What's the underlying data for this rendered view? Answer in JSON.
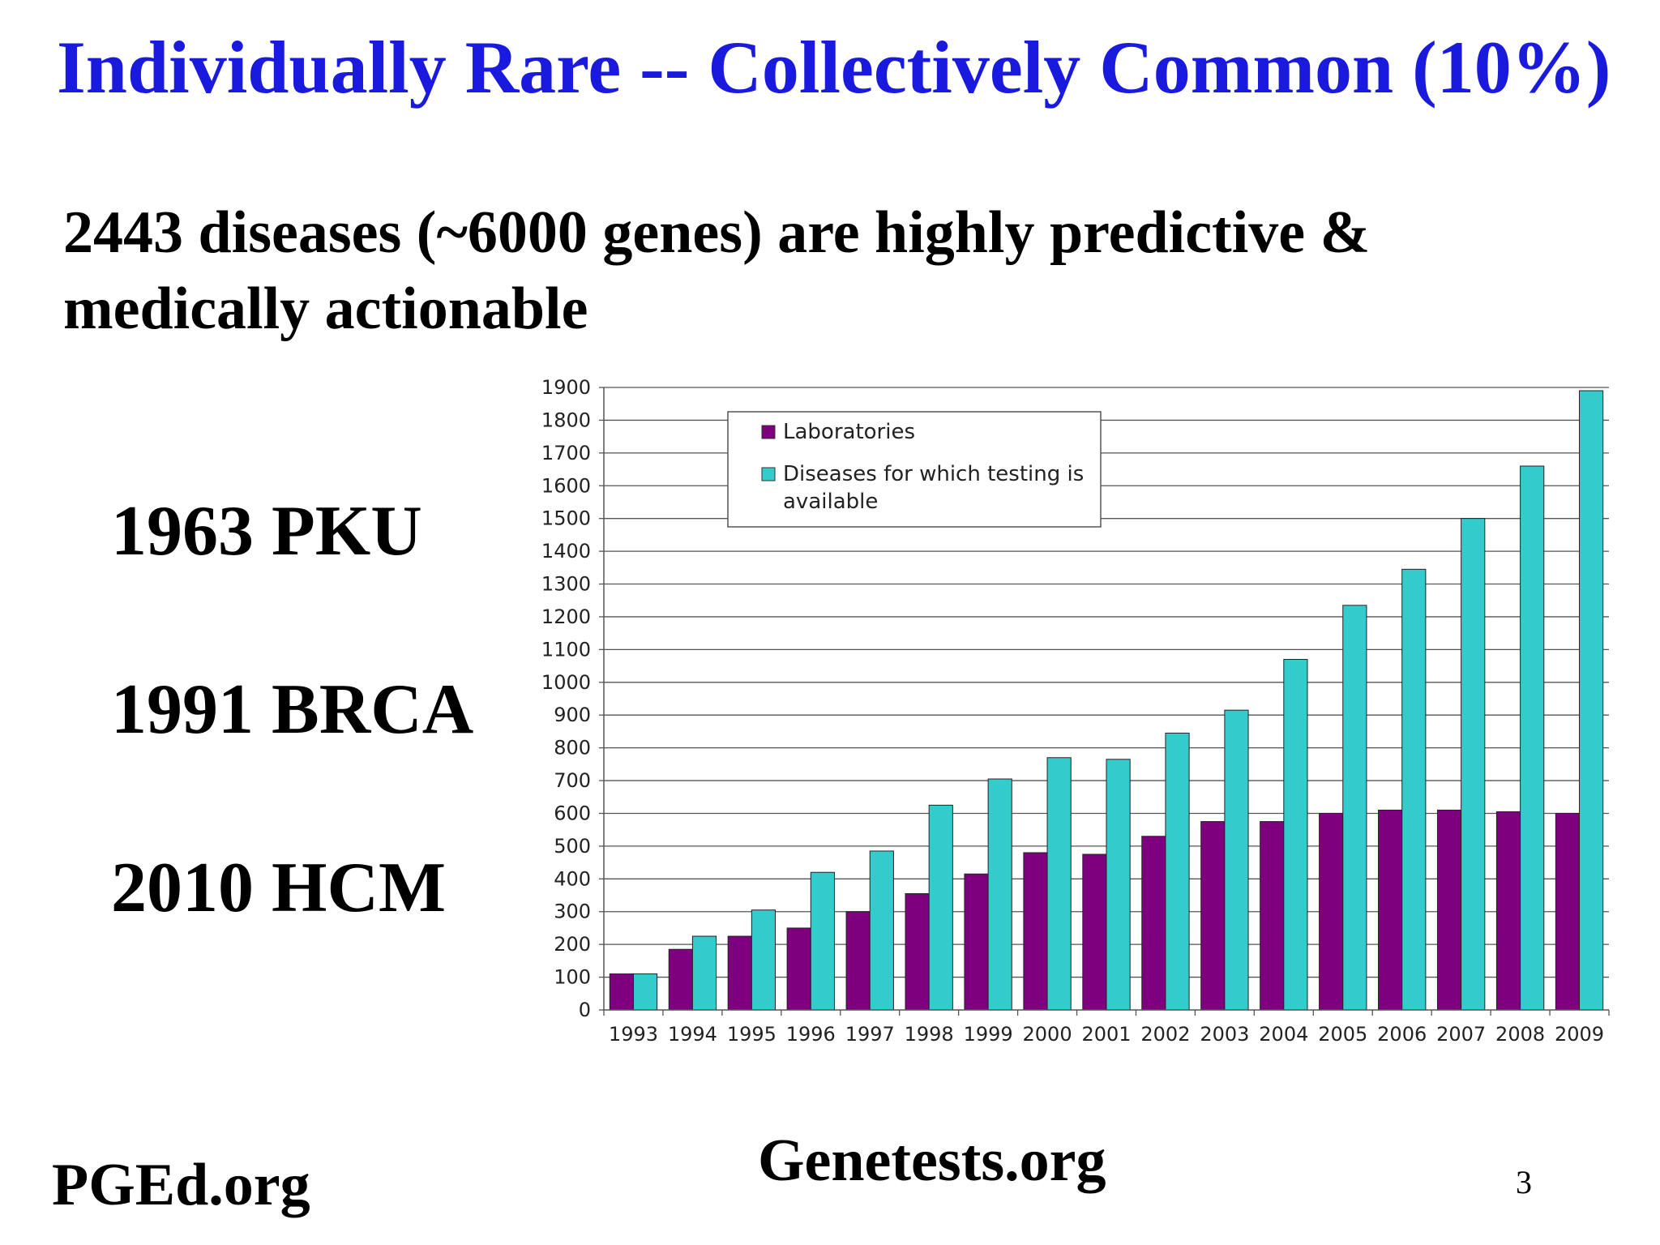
{
  "slide": {
    "title": "Individually Rare -- Collectively Common (10%)",
    "subtitle_line1": "2443 diseases (~6000 genes) are highly predictive &",
    "subtitle_line2": "medically actionable",
    "milestones": [
      "1963 PKU",
      "1991 BRCA",
      "2010 HCM"
    ],
    "footer_left": "PGEd.org",
    "footer_center": "Genetests.org",
    "page_number": "3"
  },
  "chart_data": {
    "type": "bar",
    "categories": [
      "1993",
      "1994",
      "1995",
      "1996",
      "1997",
      "1998",
      "1999",
      "2000",
      "2001",
      "2002",
      "2003",
      "2004",
      "2005",
      "2006",
      "2007",
      "2008",
      "2009"
    ],
    "series": [
      {
        "name": "Laboratories",
        "color": "#7f007f",
        "values": [
          110,
          185,
          225,
          250,
          300,
          355,
          415,
          480,
          475,
          530,
          575,
          575,
          600,
          610,
          610,
          605,
          600
        ]
      },
      {
        "name": "Diseases for which testing is available",
        "color": "#33cccc",
        "values": [
          110,
          225,
          305,
          420,
          485,
          625,
          705,
          770,
          765,
          845,
          915,
          1070,
          1235,
          1345,
          1500,
          1660,
          1890
        ]
      }
    ],
    "ylim": [
      0,
      1900
    ],
    "ytick_step": 100,
    "grid": true,
    "legend_position": "top-left"
  }
}
